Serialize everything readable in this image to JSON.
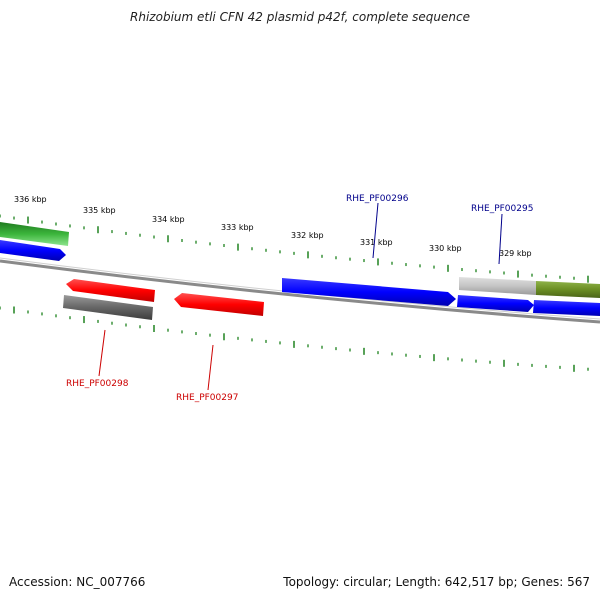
{
  "title": "Rhizobium etli CFN 42 plasmid p42f, complete sequence",
  "footer": {
    "accession": "Accession: NC_007766",
    "summary": "Topology: circular; Length: 642,517 bp; Genes: 567"
  },
  "colors": {
    "backbone": "#8a8a8a",
    "tick": "#2e8b2e",
    "forward_gene": "#0000ff",
    "reverse_gene": "#ff0000",
    "gene_label_forward": "#00008b",
    "gene_label_reverse": "#cc0000",
    "gray_feature": "#666666",
    "light_gray_feature": "#bfbfbf",
    "green_feature": "#3cb53c",
    "olive_feature": "#6b8e23"
  },
  "scale_labels": [
    {
      "text": "336 kbp"
    },
    {
      "text": "335 kbp"
    },
    {
      "text": "334 kbp"
    },
    {
      "text": "333 kbp"
    },
    {
      "text": "332 kbp"
    },
    {
      "text": "331 kbp"
    },
    {
      "text": "330 kbp"
    },
    {
      "text": "329 kbp"
    }
  ],
  "gene_labels": [
    {
      "text": "RHE_PF00296",
      "strand": "forward"
    },
    {
      "text": "RHE_PF00295",
      "strand": "forward"
    },
    {
      "text": "RHE_PF00298",
      "strand": "reverse"
    },
    {
      "text": "RHE_PF00297",
      "strand": "reverse"
    }
  ]
}
